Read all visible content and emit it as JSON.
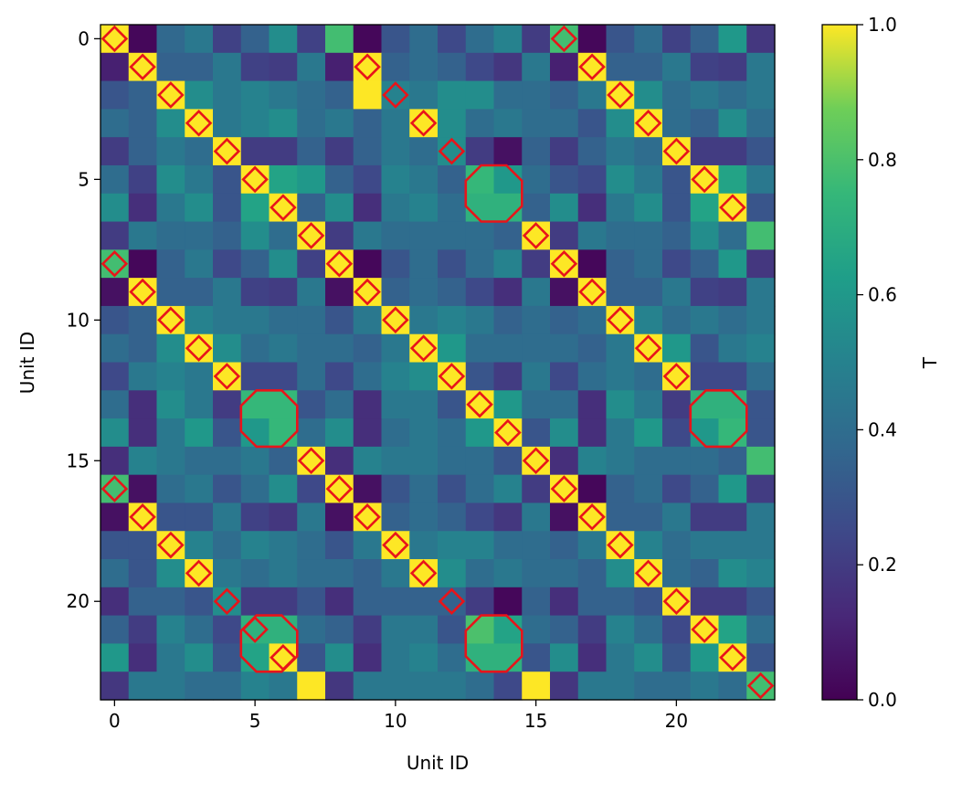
{
  "chart_data": {
    "type": "heatmap",
    "xlabel": "Unit ID",
    "ylabel": "Unit ID",
    "colorbar_label": "T",
    "colormap": "viridis",
    "clim": [
      0.0,
      1.0
    ],
    "n": 24,
    "x_ticks": [
      0,
      5,
      10,
      15,
      20
    ],
    "y_ticks": [
      0,
      5,
      10,
      15,
      20
    ],
    "colorbar_ticks": [
      "0.0",
      "0.2",
      "0.4",
      "0.6",
      "0.8",
      "1.0"
    ],
    "colorbar_tick_values": [
      0.0,
      0.2,
      0.4,
      0.6,
      0.8,
      1.0
    ],
    "values": [
      [
        1.0,
        0.02,
        0.38,
        0.45,
        0.22,
        0.35,
        0.55,
        0.22,
        0.78,
        0.02,
        0.3,
        0.4,
        0.25,
        0.4,
        0.5,
        0.2,
        0.78,
        0.02,
        0.3,
        0.4,
        0.22,
        0.35,
        0.6,
        0.18
      ],
      [
        0.1,
        1.0,
        0.35,
        0.35,
        0.45,
        0.22,
        0.2,
        0.45,
        0.1,
        1.0,
        0.35,
        0.4,
        0.35,
        0.25,
        0.18,
        0.45,
        0.1,
        1.0,
        0.35,
        0.35,
        0.45,
        0.22,
        0.2,
        0.45
      ],
      [
        0.3,
        0.35,
        1.0,
        0.55,
        0.45,
        0.5,
        0.45,
        0.4,
        0.35,
        1.0,
        0.5,
        0.45,
        0.55,
        0.55,
        0.4,
        0.4,
        0.35,
        0.45,
        1.0,
        0.55,
        0.4,
        0.45,
        0.4,
        0.45
      ],
      [
        0.4,
        0.35,
        0.55,
        1.0,
        0.45,
        0.5,
        0.55,
        0.4,
        0.45,
        0.35,
        0.45,
        1.0,
        0.55,
        0.4,
        0.45,
        0.4,
        0.4,
        0.3,
        0.55,
        1.0,
        0.4,
        0.35,
        0.55,
        0.4
      ],
      [
        0.2,
        0.35,
        0.45,
        0.4,
        1.0,
        0.2,
        0.2,
        0.35,
        0.2,
        0.35,
        0.45,
        0.4,
        0.55,
        0.2,
        0.05,
        0.35,
        0.2,
        0.35,
        0.45,
        0.4,
        1.0,
        0.2,
        0.2,
        0.3
      ],
      [
        0.4,
        0.22,
        0.55,
        0.45,
        0.3,
        1.0,
        0.65,
        0.6,
        0.35,
        0.25,
        0.5,
        0.45,
        0.35,
        0.75,
        0.6,
        0.4,
        0.3,
        0.25,
        0.55,
        0.45,
        0.3,
        1.0,
        0.65,
        0.45
      ],
      [
        0.55,
        0.15,
        0.45,
        0.55,
        0.3,
        0.65,
        1.0,
        0.35,
        0.55,
        0.15,
        0.45,
        0.5,
        0.4,
        0.72,
        0.72,
        0.35,
        0.55,
        0.15,
        0.45,
        0.55,
        0.3,
        0.65,
        1.0,
        0.3
      ],
      [
        0.2,
        0.45,
        0.4,
        0.4,
        0.35,
        0.55,
        0.4,
        1.0,
        0.2,
        0.45,
        0.4,
        0.4,
        0.4,
        0.4,
        0.35,
        1.0,
        0.2,
        0.45,
        0.4,
        0.4,
        0.35,
        0.55,
        0.4,
        0.78
      ],
      [
        0.78,
        0.02,
        0.35,
        0.45,
        0.25,
        0.35,
        0.55,
        0.22,
        1.0,
        0.02,
        0.3,
        0.4,
        0.28,
        0.4,
        0.5,
        0.2,
        1.0,
        0.02,
        0.35,
        0.4,
        0.25,
        0.35,
        0.6,
        0.18
      ],
      [
        0.05,
        1.0,
        0.35,
        0.35,
        0.45,
        0.22,
        0.2,
        0.45,
        0.05,
        1.0,
        0.35,
        0.4,
        0.35,
        0.25,
        0.15,
        0.45,
        0.05,
        1.0,
        0.35,
        0.35,
        0.45,
        0.22,
        0.2,
        0.45
      ],
      [
        0.3,
        0.35,
        1.0,
        0.5,
        0.45,
        0.45,
        0.4,
        0.4,
        0.3,
        0.45,
        1.0,
        0.45,
        0.5,
        0.45,
        0.35,
        0.4,
        0.35,
        0.4,
        1.0,
        0.5,
        0.4,
        0.45,
        0.4,
        0.45
      ],
      [
        0.4,
        0.35,
        0.55,
        1.0,
        0.55,
        0.4,
        0.45,
        0.4,
        0.4,
        0.35,
        0.45,
        1.0,
        0.6,
        0.4,
        0.4,
        0.4,
        0.4,
        0.35,
        0.45,
        1.0,
        0.6,
        0.3,
        0.45,
        0.5
      ],
      [
        0.25,
        0.45,
        0.5,
        0.45,
        1.0,
        0.25,
        0.25,
        0.4,
        0.25,
        0.4,
        0.5,
        0.55,
        1.0,
        0.3,
        0.2,
        0.45,
        0.25,
        0.4,
        0.45,
        0.4,
        1.0,
        0.25,
        0.25,
        0.4
      ],
      [
        0.4,
        0.15,
        0.55,
        0.45,
        0.2,
        0.75,
        0.75,
        0.3,
        0.4,
        0.15,
        0.45,
        0.45,
        0.3,
        1.0,
        0.6,
        0.4,
        0.4,
        0.15,
        0.55,
        0.45,
        0.2,
        0.72,
        0.72,
        0.3
      ],
      [
        0.55,
        0.15,
        0.45,
        0.6,
        0.3,
        0.6,
        0.75,
        0.4,
        0.55,
        0.15,
        0.4,
        0.45,
        0.4,
        0.6,
        1.0,
        0.3,
        0.55,
        0.15,
        0.45,
        0.6,
        0.25,
        0.6,
        0.75,
        0.3
      ],
      [
        0.15,
        0.5,
        0.45,
        0.4,
        0.4,
        0.45,
        0.35,
        1.0,
        0.15,
        0.5,
        0.45,
        0.45,
        0.4,
        0.4,
        0.3,
        1.0,
        0.15,
        0.5,
        0.45,
        0.4,
        0.4,
        0.4,
        0.35,
        0.78
      ],
      [
        0.78,
        0.05,
        0.4,
        0.45,
        0.3,
        0.4,
        0.55,
        0.25,
        1.0,
        0.05,
        0.3,
        0.4,
        0.28,
        0.4,
        0.5,
        0.2,
        1.0,
        0.02,
        0.35,
        0.4,
        0.25,
        0.35,
        0.6,
        0.2
      ],
      [
        0.05,
        1.0,
        0.3,
        0.3,
        0.45,
        0.22,
        0.18,
        0.45,
        0.05,
        1.0,
        0.35,
        0.4,
        0.35,
        0.25,
        0.18,
        0.45,
        0.05,
        1.0,
        0.35,
        0.35,
        0.45,
        0.2,
        0.2,
        0.45
      ],
      [
        0.3,
        0.3,
        1.0,
        0.5,
        0.4,
        0.5,
        0.45,
        0.4,
        0.3,
        0.45,
        1.0,
        0.45,
        0.5,
        0.5,
        0.4,
        0.4,
        0.35,
        0.45,
        1.0,
        0.5,
        0.4,
        0.45,
        0.45,
        0.45
      ],
      [
        0.4,
        0.3,
        0.55,
        1.0,
        0.45,
        0.4,
        0.45,
        0.4,
        0.4,
        0.35,
        0.45,
        1.0,
        0.55,
        0.4,
        0.45,
        0.4,
        0.4,
        0.35,
        0.55,
        1.0,
        0.4,
        0.35,
        0.55,
        0.5
      ],
      [
        0.15,
        0.35,
        0.35,
        0.3,
        0.55,
        0.2,
        0.2,
        0.3,
        0.15,
        0.35,
        0.35,
        0.35,
        0.35,
        0.2,
        0.02,
        0.35,
        0.15,
        0.35,
        0.35,
        0.3,
        1.0,
        0.2,
        0.2,
        0.3
      ],
      [
        0.35,
        0.2,
        0.5,
        0.4,
        0.25,
        0.72,
        0.72,
        0.4,
        0.35,
        0.2,
        0.45,
        0.45,
        0.3,
        0.8,
        0.65,
        0.4,
        0.35,
        0.2,
        0.5,
        0.4,
        0.25,
        1.0,
        0.65,
        0.4
      ],
      [
        0.6,
        0.15,
        0.45,
        0.55,
        0.3,
        0.65,
        1.0,
        0.3,
        0.55,
        0.15,
        0.45,
        0.5,
        0.4,
        0.72,
        0.72,
        0.3,
        0.55,
        0.15,
        0.45,
        0.55,
        0.3,
        0.6,
        1.0,
        0.3
      ],
      [
        0.18,
        0.45,
        0.45,
        0.4,
        0.4,
        0.5,
        0.45,
        1.0,
        0.18,
        0.45,
        0.45,
        0.45,
        0.45,
        0.4,
        0.25,
        1.0,
        0.18,
        0.45,
        0.45,
        0.4,
        0.4,
        0.45,
        0.4,
        0.78
      ]
    ],
    "highlight_color": "#e8141a",
    "highlight_diamonds": [
      [
        1,
        1
      ],
      [
        2,
        2
      ],
      [
        3,
        3
      ],
      [
        4,
        4
      ],
      [
        5,
        5
      ],
      [
        6,
        6
      ],
      [
        7,
        7
      ],
      [
        8,
        8
      ],
      [
        9,
        9
      ],
      [
        10,
        10
      ],
      [
        11,
        11
      ],
      [
        12,
        12
      ],
      [
        13,
        13
      ],
      [
        14,
        14
      ],
      [
        15,
        15
      ],
      [
        16,
        16
      ],
      [
        17,
        17
      ],
      [
        18,
        18
      ],
      [
        19,
        19
      ],
      [
        20,
        20
      ],
      [
        21,
        21
      ],
      [
        22,
        22
      ],
      [
        1,
        9
      ],
      [
        1,
        17
      ],
      [
        9,
        1
      ],
      [
        9,
        17
      ],
      [
        17,
        1
      ],
      [
        17,
        9
      ],
      [
        2,
        10
      ],
      [
        2,
        18
      ],
      [
        10,
        2
      ],
      [
        10,
        18
      ],
      [
        18,
        2
      ],
      [
        18,
        10
      ],
      [
        3,
        11
      ],
      [
        3,
        19
      ],
      [
        11,
        3
      ],
      [
        11,
        19
      ],
      [
        19,
        3
      ],
      [
        19,
        11
      ],
      [
        4,
        20
      ],
      [
        20,
        4
      ],
      [
        4,
        12
      ],
      [
        12,
        4
      ],
      [
        12,
        20
      ],
      [
        20,
        12
      ],
      [
        7,
        15
      ],
      [
        15,
        7
      ],
      [
        5,
        21
      ],
      [
        21,
        5
      ],
      [
        6,
        22
      ],
      [
        22,
        6
      ],
      [
        8,
        0
      ],
      [
        16,
        0
      ],
      [
        0,
        16
      ],
      [
        8,
        16
      ],
      [
        16,
        8
      ]
    ],
    "highlight_blobs": [
      {
        "rows": [
          13,
          14
        ],
        "cols": [
          5,
          6
        ]
      },
      {
        "rows": [
          5,
          6
        ],
        "cols": [
          13,
          14
        ]
      },
      {
        "rows": [
          13,
          14
        ],
        "cols": [
          21,
          22
        ]
      },
      {
        "rows": [
          21,
          22
        ],
        "cols": [
          5,
          6
        ]
      },
      {
        "rows": [
          21,
          22
        ],
        "cols": [
          13,
          14
        ]
      }
    ]
  }
}
